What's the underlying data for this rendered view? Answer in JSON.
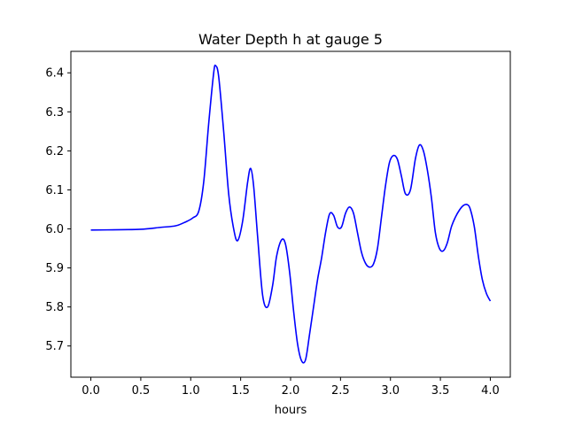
{
  "chart_data": {
    "type": "line",
    "title": "Water Depth h at gauge 5",
    "xlabel": "hours",
    "ylabel": "",
    "xlim": [
      -0.2,
      4.2
    ],
    "ylim": [
      5.62,
      6.455
    ],
    "xticks": [
      0.0,
      0.5,
      1.0,
      1.5,
      2.0,
      2.5,
      3.0,
      3.5,
      4.0
    ],
    "xtick_labels": [
      "0.0",
      "0.5",
      "1.0",
      "1.5",
      "2.0",
      "2.5",
      "3.0",
      "3.5",
      "4.0"
    ],
    "yticks": [
      5.7,
      5.8,
      5.9,
      6.0,
      6.1,
      6.2,
      6.3,
      6.4
    ],
    "ytick_labels": [
      "5.7",
      "5.8",
      "5.9",
      "6.0",
      "6.1",
      "6.2",
      "6.3",
      "6.4"
    ],
    "grid": false,
    "series": [
      {
        "color": "#0000ff",
        "x": [
          0.0,
          0.3,
          0.5,
          0.7,
          0.85,
          0.95,
          1.02,
          1.08,
          1.13,
          1.18,
          1.23,
          1.25,
          1.28,
          1.33,
          1.38,
          1.43,
          1.47,
          1.52,
          1.57,
          1.6,
          1.63,
          1.67,
          1.72,
          1.77,
          1.82,
          1.86,
          1.91,
          1.95,
          1.99,
          2.03,
          2.07,
          2.11,
          2.15,
          2.19,
          2.23,
          2.27,
          2.31,
          2.35,
          2.39,
          2.43,
          2.47,
          2.51,
          2.55,
          2.59,
          2.63,
          2.67,
          2.71,
          2.75,
          2.79,
          2.83,
          2.87,
          2.91,
          2.95,
          2.99,
          3.03,
          3.07,
          3.11,
          3.15,
          3.2,
          3.25,
          3.29,
          3.33,
          3.37,
          3.41,
          3.45,
          3.49,
          3.53,
          3.57,
          3.61,
          3.65,
          3.69,
          3.73,
          3.77,
          3.8,
          3.84,
          3.88,
          3.92,
          3.96,
          4.0
        ],
        "y": [
          5.997,
          5.998,
          5.999,
          6.004,
          6.008,
          6.018,
          6.028,
          6.045,
          6.12,
          6.27,
          6.4,
          6.418,
          6.39,
          6.25,
          6.09,
          6.0,
          5.97,
          6.02,
          6.12,
          6.155,
          6.11,
          5.98,
          5.83,
          5.8,
          5.855,
          5.93,
          5.972,
          5.96,
          5.89,
          5.79,
          5.705,
          5.662,
          5.665,
          5.73,
          5.8,
          5.87,
          5.925,
          5.99,
          6.038,
          6.035,
          6.005,
          6.005,
          6.04,
          6.056,
          6.04,
          5.99,
          5.94,
          5.912,
          5.902,
          5.91,
          5.95,
          6.03,
          6.11,
          6.17,
          6.188,
          6.178,
          6.135,
          6.09,
          6.1,
          6.18,
          6.215,
          6.2,
          6.15,
          6.08,
          5.99,
          5.95,
          5.944,
          5.965,
          6.005,
          6.03,
          6.048,
          6.06,
          6.062,
          6.05,
          6.005,
          5.93,
          5.87,
          5.835,
          5.815
        ]
      }
    ]
  }
}
